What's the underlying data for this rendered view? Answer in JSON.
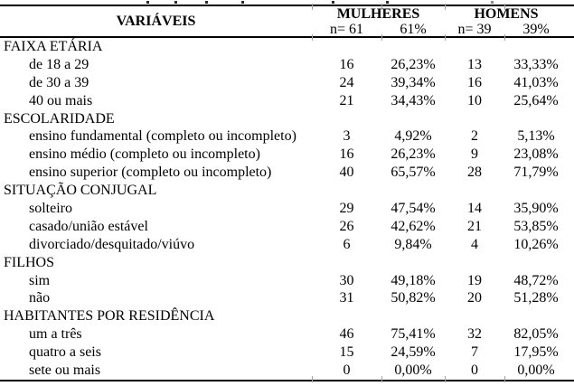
{
  "table": {
    "header": {
      "variables_label": "VARIÁVEIS",
      "groups": [
        {
          "label": "MULHERES",
          "n": "n= 61",
          "pct": "61%"
        },
        {
          "label": "HOMENS",
          "n": "n= 39",
          "pct": "39%"
        }
      ]
    },
    "sections": [
      {
        "title": "FAIXA ETÁRIA",
        "rows": [
          {
            "label": "de 18 a 29",
            "values": [
              "16",
              "26,23%",
              "13",
              "33,33%"
            ]
          },
          {
            "label": "de 30 a 39",
            "values": [
              "24",
              "39,34%",
              "16",
              "41,03%"
            ]
          },
          {
            "label": "40 ou mais",
            "values": [
              "21",
              "34,43%",
              "10",
              "25,64%"
            ]
          }
        ]
      },
      {
        "title": "ESCOLARIDADE",
        "rows": [
          {
            "label": "ensino fundamental (completo ou incompleto)",
            "values": [
              "3",
              "4,92%",
              "2",
              "5,13%"
            ]
          },
          {
            "label": "ensino médio (completo ou incompleto)",
            "values": [
              "16",
              "26,23%",
              "9",
              "23,08%"
            ]
          },
          {
            "label": "ensino superior (completo ou incompleto)",
            "values": [
              "40",
              "65,57%",
              "28",
              "71,79%"
            ]
          }
        ]
      },
      {
        "title": "SITUAÇÃO CONJUGAL",
        "rows": [
          {
            "label": "solteiro",
            "values": [
              "29",
              "47,54%",
              "14",
              "35,90%"
            ]
          },
          {
            "label": "casado/união estável",
            "values": [
              "26",
              "42,62%",
              "21",
              "53,85%"
            ]
          },
          {
            "label": "divorciado/desquitado/viúvo",
            "values": [
              "6",
              "9,84%",
              "4",
              "10,26%"
            ]
          }
        ]
      },
      {
        "title": "FILHOS",
        "rows": [
          {
            "label": "sim",
            "values": [
              "30",
              "49,18%",
              "19",
              "48,72%"
            ]
          },
          {
            "label": "não",
            "values": [
              "31",
              "50,82%",
              "20",
              "51,28%"
            ]
          }
        ]
      },
      {
        "title": "HABITANTES POR RESIDÊNCIA",
        "rows": [
          {
            "label": "um a três",
            "values": [
              "46",
              "75,41%",
              "32",
              "82,05%"
            ]
          },
          {
            "label": "quatro a seis",
            "values": [
              "15",
              "24,59%",
              "7",
              "17,95%"
            ]
          },
          {
            "label": "sete ou mais",
            "values": [
              "0",
              "0,00%",
              "0",
              "0,00%"
            ]
          }
        ]
      }
    ],
    "colors": {
      "text": "#000000",
      "rule": "#000000",
      "gridline_tick": "#a3a3a3",
      "background": "#ffffff"
    }
  }
}
